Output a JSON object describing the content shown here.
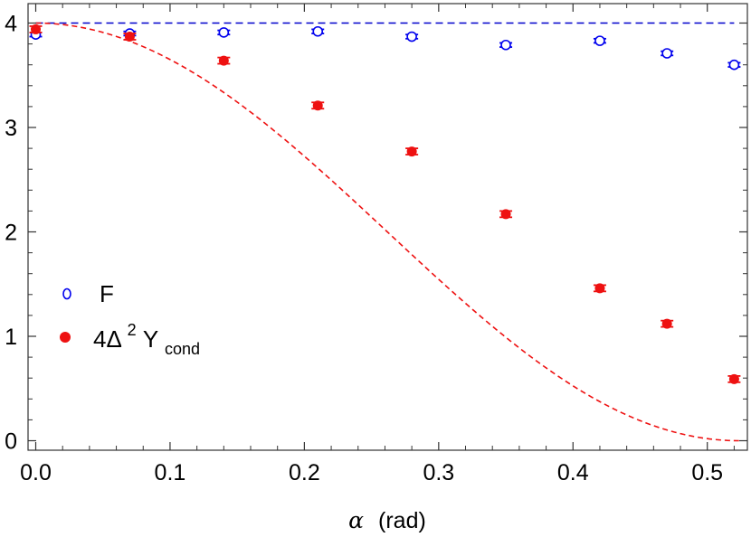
{
  "chart_data": {
    "type": "scatter",
    "xlabel": {
      "symbol": "α",
      "unit": "(rad)"
    },
    "ylabel": "",
    "xlim": [
      -0.01,
      0.53
    ],
    "ylim": [
      -0.05,
      4.05
    ],
    "xticks": [
      "0.0",
      "0.1",
      "0.2",
      "0.3",
      "0.4",
      "0.5"
    ],
    "xtick_values": [
      0.0,
      0.1,
      0.2,
      0.3,
      0.4,
      0.5
    ],
    "yticks": [
      "0",
      "1",
      "2",
      "3",
      "4"
    ],
    "ytick_values": [
      0,
      1,
      2,
      3,
      4
    ],
    "grid": false,
    "legend_position": "left-middle",
    "series": [
      {
        "name": "F",
        "marker": "open-circle",
        "color": "#0000ee",
        "error_bars": true,
        "points": [
          {
            "x": 0.0,
            "y": 3.89,
            "err": 0.02
          },
          {
            "x": 0.07,
            "y": 3.9,
            "err": 0.02
          },
          {
            "x": 0.14,
            "y": 3.91,
            "err": 0.02
          },
          {
            "x": 0.21,
            "y": 3.92,
            "err": 0.02
          },
          {
            "x": 0.28,
            "y": 3.87,
            "err": 0.02
          },
          {
            "x": 0.35,
            "y": 3.79,
            "err": 0.02
          },
          {
            "x": 0.42,
            "y": 3.83,
            "err": 0.02
          },
          {
            "x": 0.47,
            "y": 3.71,
            "err": 0.02
          },
          {
            "x": 0.52,
            "y": 3.6,
            "err": 0.02
          }
        ]
      },
      {
        "name_parts": {
          "base": "4Δ",
          "sup": "2",
          "main": "Y",
          "sub": "cond"
        },
        "marker": "filled-circle",
        "color": "#ee1111",
        "error_bars": true,
        "points": [
          {
            "x": 0.0,
            "y": 3.94,
            "err": 0.03
          },
          {
            "x": 0.07,
            "y": 3.87,
            "err": 0.03
          },
          {
            "x": 0.14,
            "y": 3.64,
            "err": 0.03
          },
          {
            "x": 0.21,
            "y": 3.21,
            "err": 0.03
          },
          {
            "x": 0.28,
            "y": 2.77,
            "err": 0.03
          },
          {
            "x": 0.35,
            "y": 2.17,
            "err": 0.03
          },
          {
            "x": 0.42,
            "y": 1.46,
            "err": 0.03
          },
          {
            "x": 0.47,
            "y": 1.12,
            "err": 0.03
          },
          {
            "x": 0.52,
            "y": 0.59,
            "err": 0.03
          }
        ]
      }
    ],
    "reference_lines": [
      {
        "kind": "constant",
        "y": 4,
        "style": "dashed",
        "color": "#0000cc",
        "x_from": 0.0,
        "x_to": 0.52
      },
      {
        "kind": "curve",
        "formula": "4*cos^2(3*alpha)",
        "style": "dashed",
        "color": "#ee1111",
        "x_from": 0.0,
        "x_to": 0.5236
      }
    ]
  }
}
